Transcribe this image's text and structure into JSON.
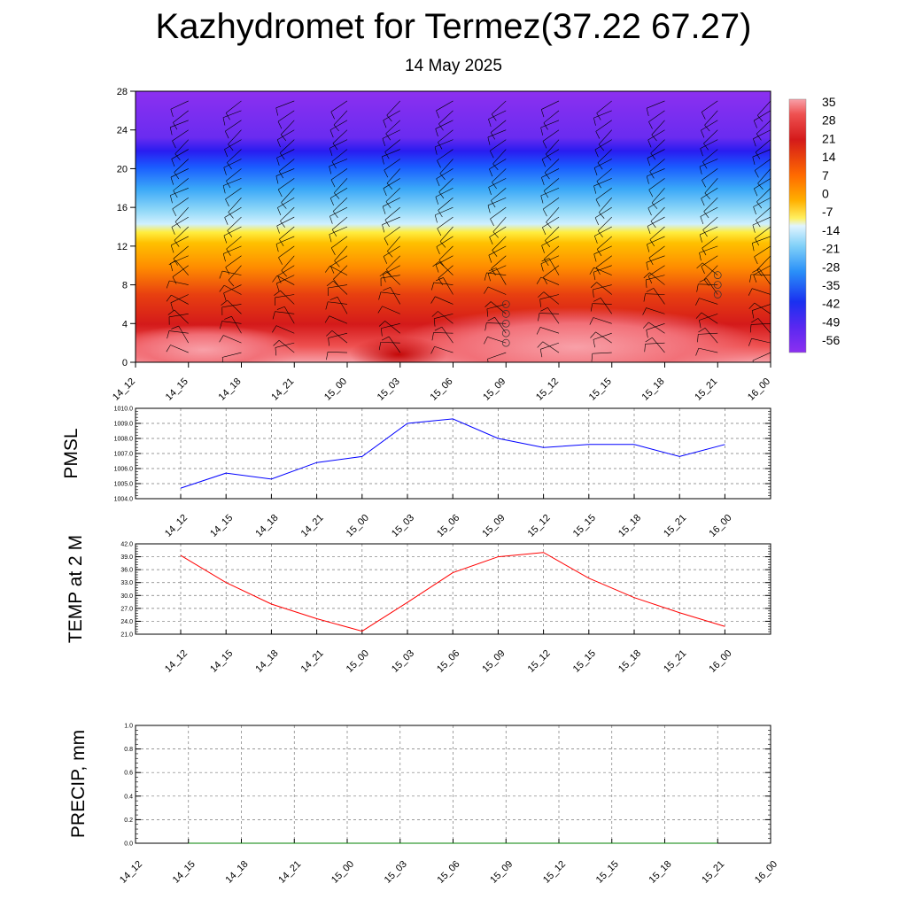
{
  "title": "Kazhydromet for Termez(37.22 67.27)",
  "subtitle": "14 May 2025",
  "time_labels": [
    "14_12",
    "14_15",
    "14_18",
    "14_21",
    "15_00",
    "15_03",
    "15_06",
    "15_09",
    "15_12",
    "15_15",
    "15_18",
    "15_21",
    "16_00"
  ],
  "chart_data": [
    {
      "type": "heatmap",
      "name_hint": "cross-section",
      "y_ticks": [
        0,
        4,
        8,
        12,
        16,
        20,
        24,
        28
      ],
      "ylim": [
        0,
        28
      ],
      "colorbar_labels": [
        "35",
        "28",
        "21",
        "14",
        "7",
        "0",
        "-7",
        "-14",
        "-21",
        "-28",
        "-35",
        "-42",
        "-49",
        "-56"
      ],
      "colors": {
        "low": "#f8a0a8",
        "warm": "#d41a1a",
        "orange": "#ff8c00",
        "yellow": "#ffe000",
        "lightblue": "#90d8f8",
        "blue": "#1a7bff",
        "deep": "#2a1cf0",
        "violet": "#8c30f0"
      }
    },
    {
      "type": "line",
      "ylabel": "PMSL",
      "ylim": [
        1004.0,
        1010.0
      ],
      "y_ticks": [
        "1004.0",
        "1005.0",
        "1006.0",
        "1007.0",
        "1008.0",
        "1009.0",
        "1010.0"
      ],
      "x": [
        "14_12",
        "14_15",
        "14_18",
        "14_21",
        "15_00",
        "15_03",
        "15_06",
        "15_09",
        "15_12",
        "15_15",
        "15_18",
        "15_21",
        "16_00"
      ],
      "values": [
        1004.7,
        1005.7,
        1005.3,
        1006.4,
        1006.8,
        1009.0,
        1009.3,
        1008.0,
        1007.4,
        1007.6,
        1007.6,
        1006.8,
        1007.6
      ],
      "color": "#0000ff"
    },
    {
      "type": "line",
      "ylabel": "TEMP at 2 M",
      "ylim": [
        21.0,
        42.0
      ],
      "y_ticks": [
        "21.0",
        "24.0",
        "27.0",
        "30.0",
        "33.0",
        "36.0",
        "39.0",
        "42.0"
      ],
      "x": [
        "14_12",
        "14_15",
        "14_18",
        "14_21",
        "15_00",
        "15_03",
        "15_06",
        "15_09",
        "15_12",
        "15_15",
        "15_18",
        "15_21",
        "16_00"
      ],
      "values": [
        39.3,
        33.0,
        28.0,
        24.6,
        21.7,
        28.4,
        35.3,
        39.0,
        40.0,
        34.0,
        29.5,
        26.0,
        22.8
      ],
      "color": "#ff0000"
    },
    {
      "type": "line",
      "ylabel": "PRECIP, mm",
      "ylim": [
        0.0,
        1.0
      ],
      "y_ticks": [
        "0.0",
        "0.2",
        "0.4",
        "0.6",
        "0.8",
        "1.0"
      ],
      "x": [
        "14_15",
        "14_18",
        "14_21",
        "15_00",
        "15_03",
        "15_06",
        "15_09",
        "15_12",
        "15_15",
        "15_18",
        "15_21"
      ],
      "values": [
        0,
        0,
        0,
        0,
        0,
        0,
        0,
        0,
        0,
        0,
        0
      ],
      "color": "#008000"
    }
  ]
}
